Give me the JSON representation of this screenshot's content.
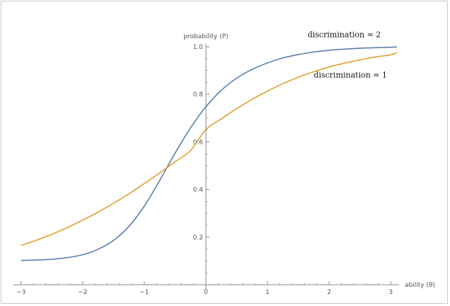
{
  "chart_data": {
    "type": "line",
    "title": "",
    "xlabel": "ability (θ)",
    "ylabel": "probability (P)",
    "xlim": [
      -3.1,
      3.1
    ],
    "ylim": [
      0.0,
      1.0
    ],
    "grid": false,
    "x_ticks": [
      {
        "value": -3,
        "label": "−3"
      },
      {
        "value": -2,
        "label": "−2"
      },
      {
        "value": -1,
        "label": "−1"
      },
      {
        "value": 0,
        "label": "0"
      },
      {
        "value": 1,
        "label": "1"
      },
      {
        "value": 2,
        "label": "2"
      },
      {
        "value": 3,
        "label": "3"
      }
    ],
    "y_ticks": [
      {
        "value": 0.2,
        "label": "0.2"
      },
      {
        "value": 0.4,
        "label": "0.4"
      },
      {
        "value": 0.6,
        "label": "0.6"
      },
      {
        "value": 0.8,
        "label": "0.8"
      },
      {
        "value": 1.0,
        "label": "1.0"
      }
    ],
    "series": [
      {
        "name": "discrimination = 2",
        "color": "#5b7fb0",
        "x": [
          -3.0,
          -2.75,
          -2.5,
          -2.25,
          -2.0,
          -1.75,
          -1.5,
          -1.25,
          -1.0,
          -0.75,
          -0.5,
          -0.25,
          0.0,
          0.25,
          0.5,
          0.75,
          1.0,
          1.25,
          1.5,
          1.75,
          2.0,
          2.25,
          2.5,
          2.75,
          3.0,
          3.1
        ],
        "y": [
          0.102,
          0.104,
          0.107,
          0.114,
          0.126,
          0.149,
          0.186,
          0.245,
          0.33,
          0.438,
          0.553,
          0.659,
          0.748,
          0.817,
          0.868,
          0.905,
          0.932,
          0.953,
          0.967,
          0.978,
          0.985,
          0.99,
          0.994,
          0.996,
          0.998,
          0.999
        ]
      },
      {
        "name": "discrimination = 1",
        "color": "#e0a030",
        "x": [
          -3.0,
          -2.75,
          -2.5,
          -2.25,
          -2.0,
          -1.75,
          -1.5,
          -1.25,
          -1.0,
          -0.75,
          -0.5,
          -0.25,
          0.0,
          0.25,
          0.5,
          0.75,
          1.0,
          1.25,
          1.5,
          1.75,
          2.0,
          2.25,
          2.5,
          2.75,
          3.0,
          3.1
        ],
        "y": [
          0.165,
          0.187,
          0.212,
          0.24,
          0.271,
          0.305,
          0.342,
          0.382,
          0.425,
          0.47,
          0.517,
          0.564,
          0.652,
          0.697,
          0.74,
          0.779,
          0.814,
          0.845,
          0.872,
          0.895,
          0.915,
          0.931,
          0.945,
          0.957,
          0.966,
          0.975
        ]
      }
    ],
    "annotations": [
      {
        "text": "discrimination = 2",
        "x": 1.65,
        "y": 1.04
      },
      {
        "text": "discrimination = 1",
        "x": 1.75,
        "y": 0.87
      }
    ]
  }
}
